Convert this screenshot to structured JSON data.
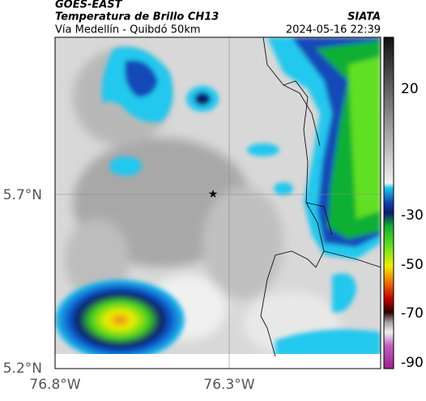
{
  "header": {
    "title": "GOES-EAST",
    "subtitle": "Temperatura de Brillo CH13",
    "location": "Vía Medellín - Quibdó 50km",
    "source": "SIATA",
    "datetime": "2024-05-16 22:39"
  },
  "map": {
    "yticks": [
      "5.7°N",
      "5.2°N"
    ],
    "xticks": [
      "76.8°W",
      "76.3°W"
    ]
  },
  "colorbar": {
    "ticks": [
      20,
      -30,
      -50,
      -70,
      -90
    ]
  }
}
